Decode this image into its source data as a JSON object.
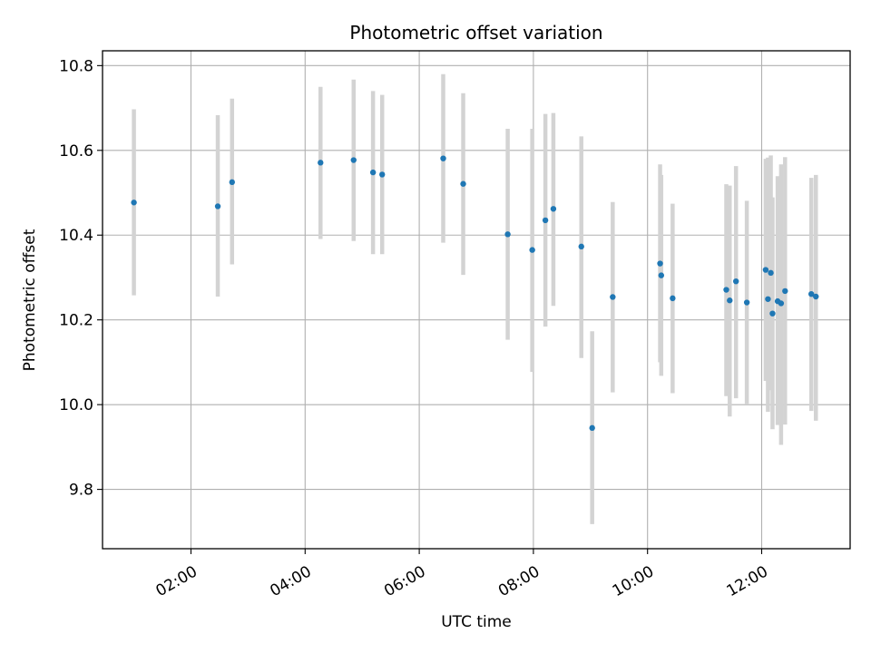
{
  "chart_data": {
    "type": "scatter",
    "title": "Photometric offset variation",
    "xlabel": "UTC time",
    "ylabel": "Photometric offset",
    "x_unit": "hours (UTC)",
    "xlim": [
      0.45,
      13.55
    ],
    "ylim": [
      9.66,
      10.835
    ],
    "x_ticks": [
      {
        "value": 2,
        "label": "02:00"
      },
      {
        "value": 4,
        "label": "04:00"
      },
      {
        "value": 6,
        "label": "06:00"
      },
      {
        "value": 8,
        "label": "08:00"
      },
      {
        "value": 10,
        "label": "10:00"
      },
      {
        "value": 12,
        "label": "12:00"
      }
    ],
    "y_ticks": [
      {
        "value": 9.8,
        "label": "9.8"
      },
      {
        "value": 10.0,
        "label": "10.0"
      },
      {
        "value": 10.2,
        "label": "10.2"
      },
      {
        "value": 10.4,
        "label": "10.4"
      },
      {
        "value": 10.6,
        "label": "10.6"
      },
      {
        "value": 10.8,
        "label": "10.8"
      }
    ],
    "grid": true,
    "point_color": "#1f77b4",
    "errorbar_color": "#d3d3d3",
    "points": [
      {
        "x": 1.0,
        "y": 10.477,
        "lo": 10.258,
        "hi": 10.697
      },
      {
        "x": 2.47,
        "y": 10.468,
        "lo": 10.255,
        "hi": 10.683
      },
      {
        "x": 2.72,
        "y": 10.525,
        "lo": 10.331,
        "hi": 10.722
      },
      {
        "x": 4.27,
        "y": 10.571,
        "lo": 10.391,
        "hi": 10.75
      },
      {
        "x": 4.85,
        "y": 10.577,
        "lo": 10.386,
        "hi": 10.767
      },
      {
        "x": 5.19,
        "y": 10.548,
        "lo": 10.355,
        "hi": 10.74
      },
      {
        "x": 5.35,
        "y": 10.543,
        "lo": 10.355,
        "hi": 10.731
      },
      {
        "x": 6.42,
        "y": 10.581,
        "lo": 10.382,
        "hi": 10.78
      },
      {
        "x": 6.77,
        "y": 10.521,
        "lo": 10.306,
        "hi": 10.735
      },
      {
        "x": 7.55,
        "y": 10.402,
        "lo": 10.153,
        "hi": 10.651
      },
      {
        "x": 7.98,
        "y": 10.365,
        "lo": 10.077,
        "hi": 10.651
      },
      {
        "x": 8.21,
        "y": 10.435,
        "lo": 10.184,
        "hi": 10.686
      },
      {
        "x": 8.35,
        "y": 10.462,
        "lo": 10.233,
        "hi": 10.688
      },
      {
        "x": 8.84,
        "y": 10.373,
        "lo": 10.11,
        "hi": 10.633
      },
      {
        "x": 9.03,
        "y": 9.945,
        "lo": 9.718,
        "hi": 10.173
      },
      {
        "x": 9.39,
        "y": 10.254,
        "lo": 10.029,
        "hi": 10.478
      },
      {
        "x": 10.22,
        "y": 10.333,
        "lo": 10.1,
        "hi": 10.567
      },
      {
        "x": 10.24,
        "y": 10.305,
        "lo": 10.068,
        "hi": 10.542
      },
      {
        "x": 10.44,
        "y": 10.251,
        "lo": 10.027,
        "hi": 10.474
      },
      {
        "x": 11.38,
        "y": 10.271,
        "lo": 10.02,
        "hi": 10.52
      },
      {
        "x": 11.44,
        "y": 10.246,
        "lo": 9.972,
        "hi": 10.517
      },
      {
        "x": 11.55,
        "y": 10.291,
        "lo": 10.015,
        "hi": 10.563
      },
      {
        "x": 11.74,
        "y": 10.241,
        "lo": 10.002,
        "hi": 10.481
      },
      {
        "x": 12.07,
        "y": 10.318,
        "lo": 10.056,
        "hi": 10.58
      },
      {
        "x": 12.11,
        "y": 10.249,
        "lo": 9.983,
        "hi": 10.583
      },
      {
        "x": 12.16,
        "y": 10.311,
        "lo": 10.034,
        "hi": 10.588
      },
      {
        "x": 12.19,
        "y": 10.215,
        "lo": 9.942,
        "hi": 10.489
      },
      {
        "x": 12.28,
        "y": 10.244,
        "lo": 9.952,
        "hi": 10.539
      },
      {
        "x": 12.34,
        "y": 10.239,
        "lo": 9.905,
        "hi": 10.567
      },
      {
        "x": 12.41,
        "y": 10.268,
        "lo": 9.953,
        "hi": 10.584
      },
      {
        "x": 12.87,
        "y": 10.261,
        "lo": 9.985,
        "hi": 10.535
      },
      {
        "x": 12.95,
        "y": 10.255,
        "lo": 9.962,
        "hi": 10.542
      }
    ]
  }
}
